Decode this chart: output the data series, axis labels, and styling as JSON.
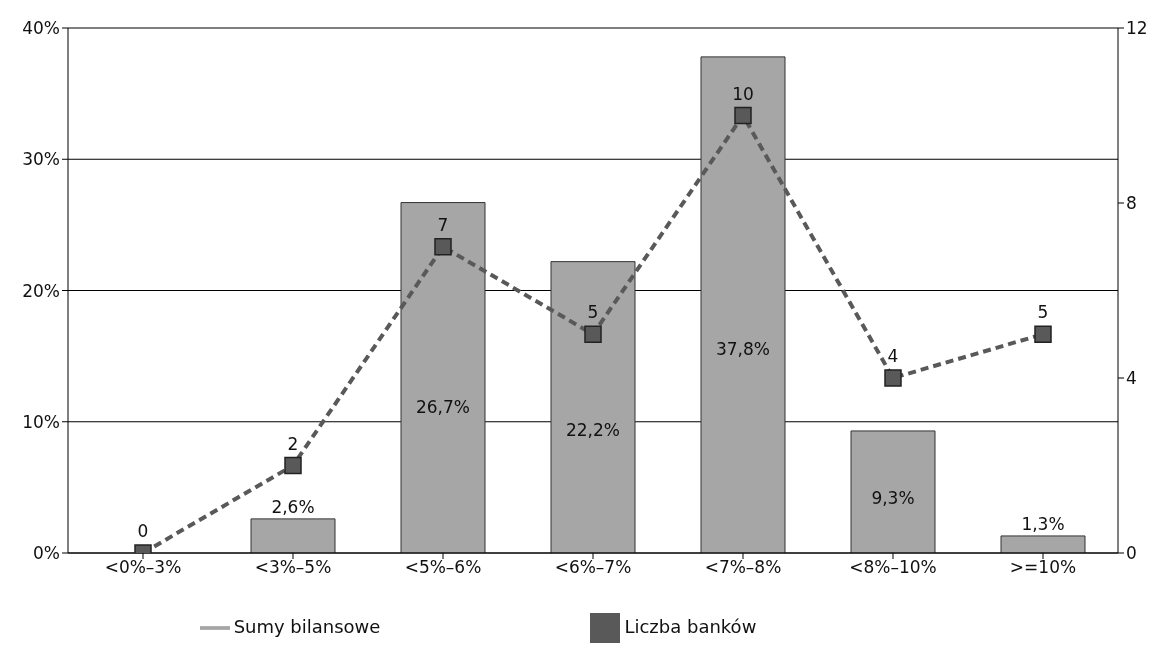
{
  "chart_data": {
    "type": "bar",
    "categories": [
      "<0%–3%",
      "<3%–5%",
      "<5%–6%",
      "<6%–7%",
      "<7%–8%",
      "<8%–10%",
      ">=10%"
    ],
    "series": [
      {
        "name": "Sumy bilansowe",
        "color": "#a6a6a6",
        "values": [
          0,
          2.6,
          26.7,
          22.2,
          37.8,
          9.3,
          1.3
        ],
        "value_labels": [
          null,
          "2,6%",
          "26,7%",
          "22,2%",
          "37,8%",
          "9,3%",
          "1,3%"
        ]
      },
      {
        "name": "Liczba banków",
        "type": "line",
        "axis": "y2",
        "color": "#595959",
        "values": [
          0,
          2,
          7,
          5,
          10,
          4,
          5
        ],
        "value_labels": [
          "0",
          "2",
          "7",
          "5",
          "10",
          "4",
          "5"
        ]
      }
    ],
    "ylim": [
      0,
      40
    ],
    "yticks": [
      {
        "value": 0,
        "label": "0%"
      },
      {
        "value": 10,
        "label": "10%"
      },
      {
        "value": 20,
        "label": "20%"
      },
      {
        "value": 30,
        "label": "30%"
      },
      {
        "value": 40,
        "label": "40%"
      }
    ],
    "y2lim": [
      0,
      12
    ],
    "y2ticks": [
      0,
      4,
      8,
      12
    ],
    "grid": "y",
    "legend": "bottom",
    "marker": "square",
    "line_style": "dashed"
  }
}
